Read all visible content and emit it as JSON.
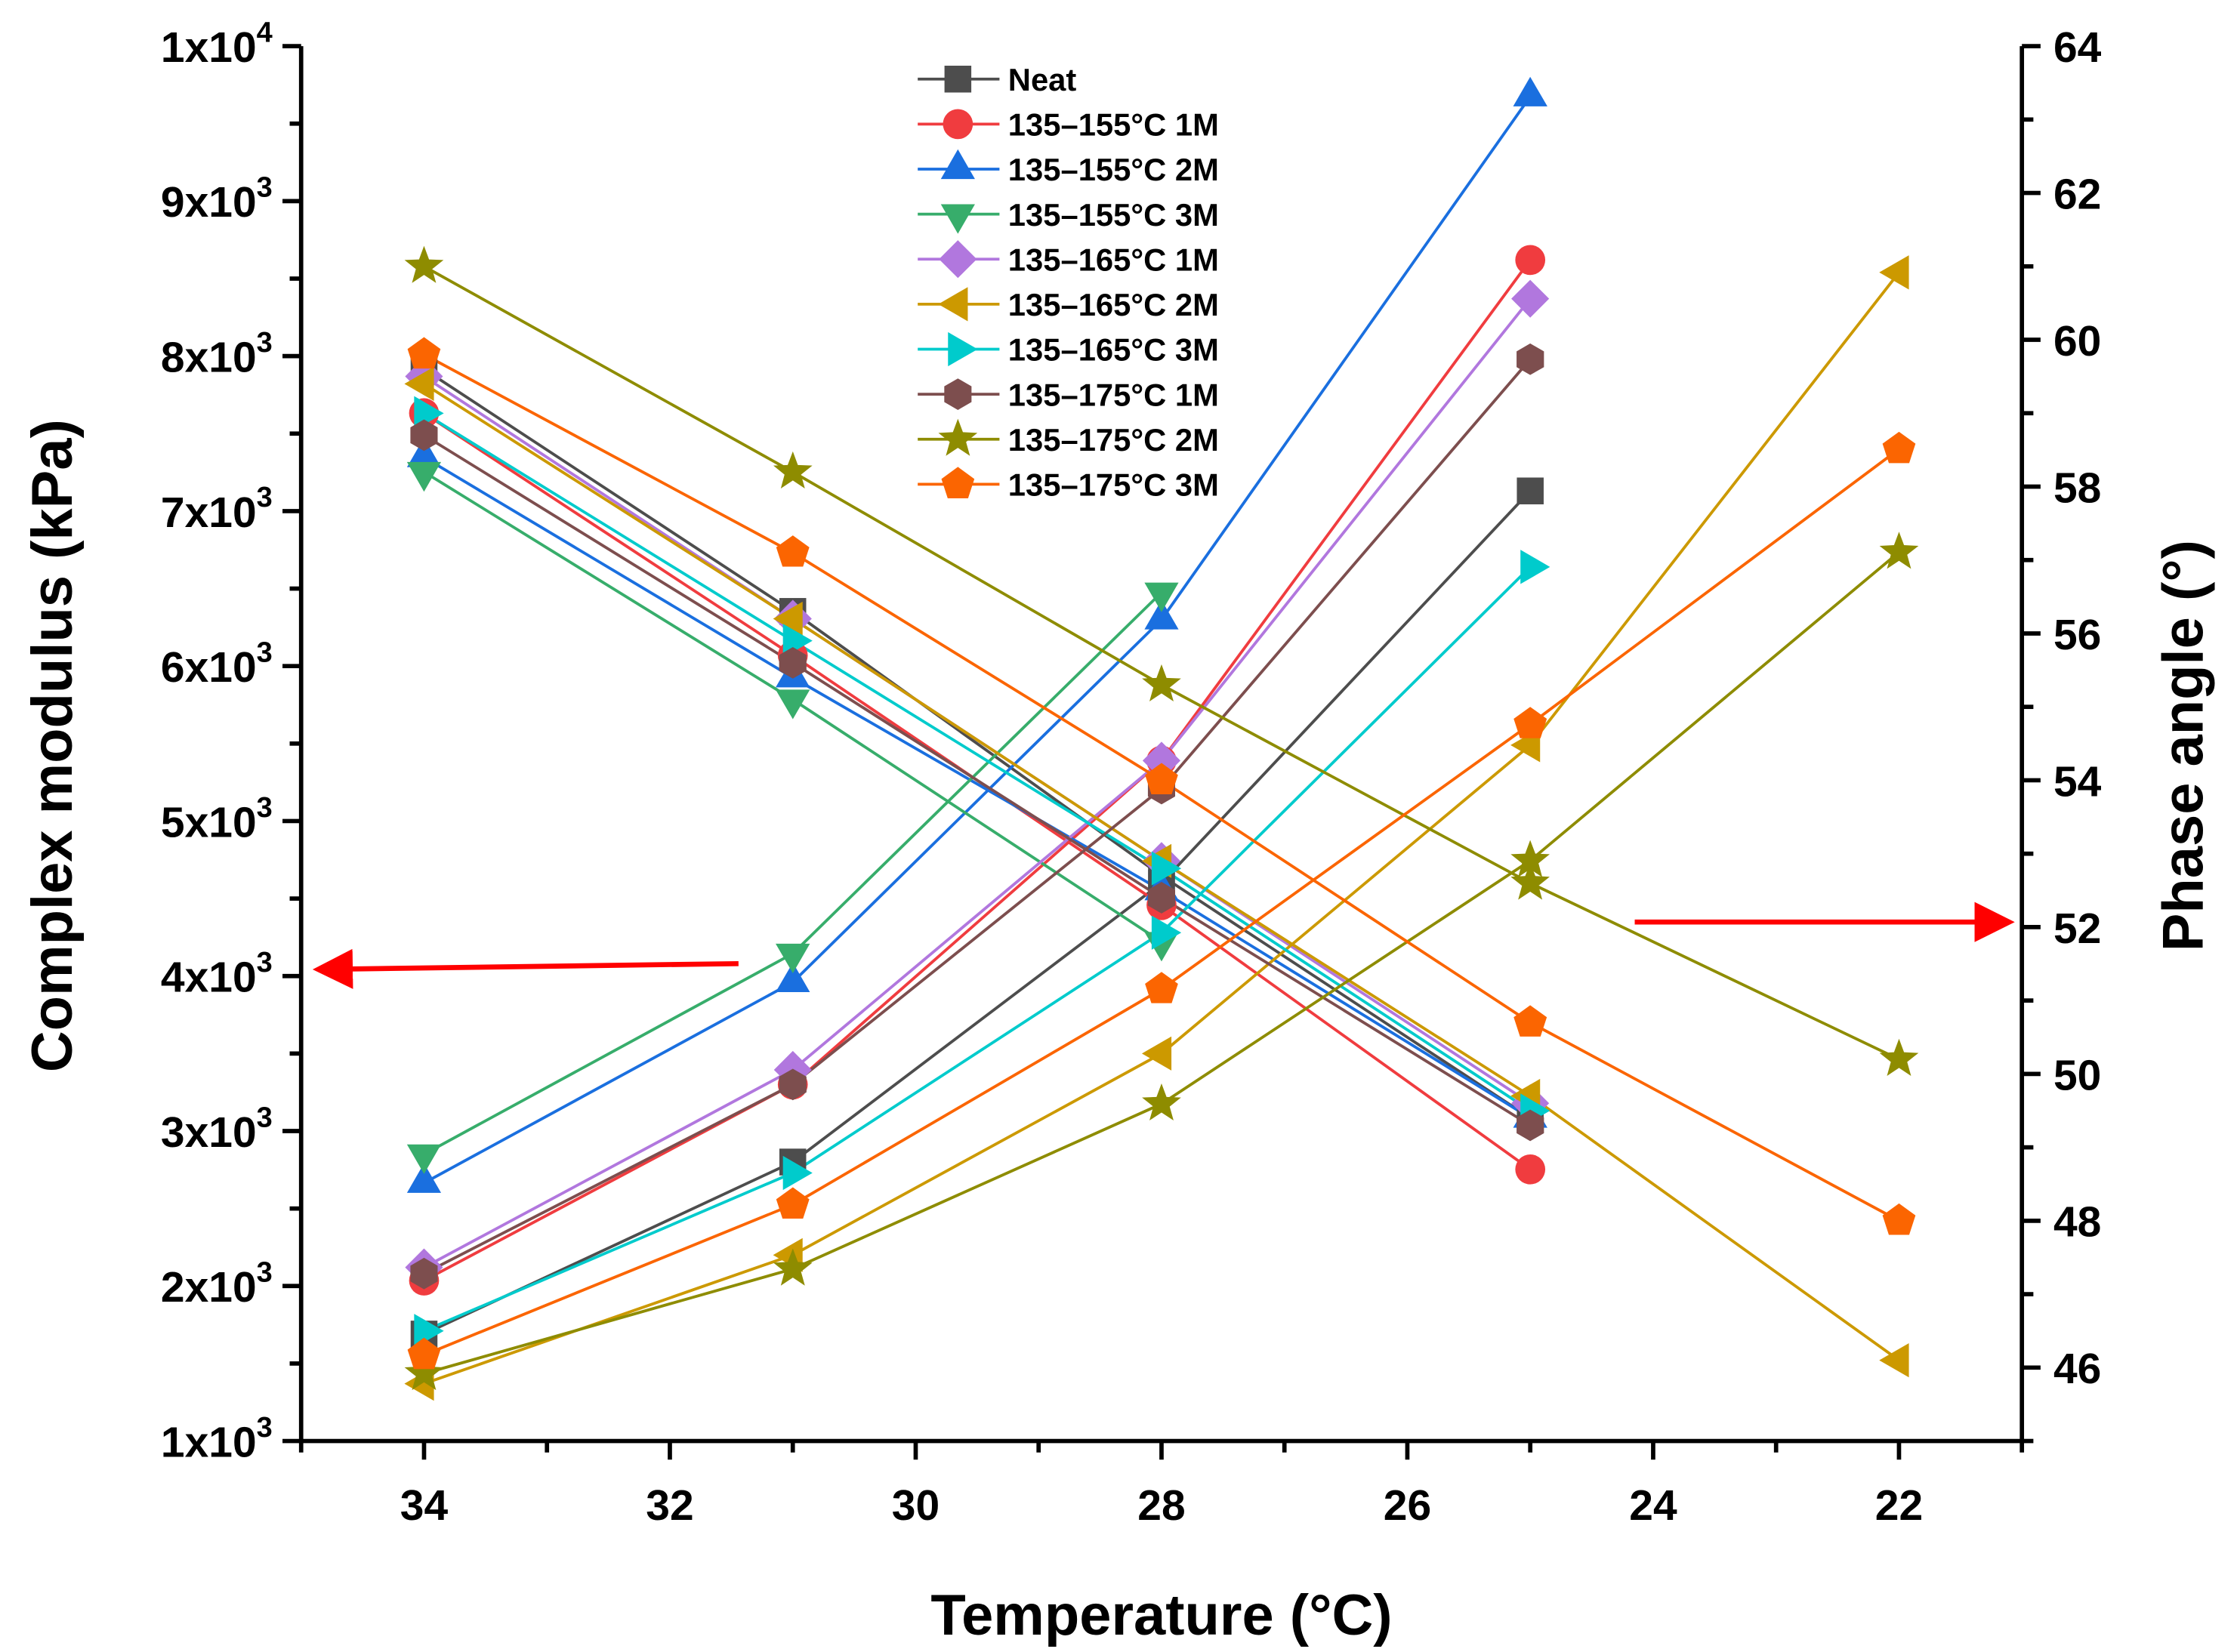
{
  "chart_data": {
    "type": "line",
    "xlabel": "Temperature (°C)",
    "ylabel_left": "Complex modulus (kPa)",
    "ylabel_right": "Phase angle (°)",
    "xlim": [
      35,
      21
    ],
    "ylim_left": [
      1000,
      10000
    ],
    "ylim_right": [
      45,
      64
    ],
    "x_ticks": [
      "34",
      "32",
      "30",
      "28",
      "26",
      "24",
      "22"
    ],
    "y_left_ticks": [
      {
        "base": "1x10",
        "exp": "3"
      },
      {
        "base": "2x10",
        "exp": "3"
      },
      {
        "base": "3x10",
        "exp": "3"
      },
      {
        "base": "4x10",
        "exp": "3"
      },
      {
        "base": "5x10",
        "exp": "3"
      },
      {
        "base": "6x10",
        "exp": "3"
      },
      {
        "base": "7x10",
        "exp": "3"
      },
      {
        "base": "8x10",
        "exp": "3"
      },
      {
        "base": "9x10",
        "exp": "3"
      },
      {
        "base": "1x10",
        "exp": "4"
      }
    ],
    "y_right_ticks": [
      "46",
      "48",
      "50",
      "52",
      "54",
      "56",
      "58",
      "60",
      "62",
      "64"
    ],
    "legend_position": "top-center",
    "x": [
      34,
      31,
      28,
      25,
      22
    ],
    "series": [
      {
        "name": "Neat",
        "marker": "square",
        "color": "#4d4d4d",
        "modulus": [
          1690,
          2800,
          4600,
          7130,
          null
        ],
        "phase": [
          59.6,
          56.3,
          52.7,
          49.4,
          null
        ]
      },
      {
        "name": "135–155°C 1M",
        "marker": "circle",
        "color": "#f03c3f",
        "modulus": [
          2035,
          3300,
          5390,
          8620,
          null
        ],
        "phase": [
          59.0,
          55.7,
          52.3,
          48.7,
          null
        ]
      },
      {
        "name": "135–155°C 2M",
        "marker": "triangle-up",
        "color": "#1a6fdf",
        "modulus": [
          2665,
          3960,
          6300,
          9675,
          null
        ],
        "phase": [
          58.4,
          55.4,
          52.5,
          49.4,
          null
        ]
      },
      {
        "name": "135–155°C 3M",
        "marker": "triangle-down",
        "color": "#37ad6b",
        "modulus": [
          2850,
          4145,
          6475,
          null,
          null
        ],
        "phase": [
          58.2,
          55.1,
          51.8,
          null,
          null
        ]
      },
      {
        "name": "135–165°C 1M",
        "marker": "diamond",
        "color": "#b177de",
        "modulus": [
          2120,
          3395,
          5390,
          8370,
          null
        ],
        "phase": [
          59.5,
          56.2,
          52.9,
          49.6,
          null
        ]
      },
      {
        "name": "135–165°C 2M",
        "marker": "triangle-left",
        "color": "#cc9900",
        "modulus": [
          1370,
          2200,
          3500,
          5490,
          8540
        ],
        "phase": [
          59.4,
          56.2,
          52.9,
          49.7,
          46.1
        ]
      },
      {
        "name": "135–165°C 3M",
        "marker": "triangle-right",
        "color": "#00cbcc",
        "modulus": [
          1710,
          2730,
          4280,
          6640,
          null
        ],
        "phase": [
          59.0,
          55.9,
          52.8,
          49.5,
          null
        ]
      },
      {
        "name": "135–175°C 1M",
        "marker": "hexagon",
        "color": "#7d4e4e",
        "modulus": [
          2080,
          3300,
          5210,
          7980,
          null
        ],
        "phase": [
          58.7,
          55.6,
          52.4,
          49.3,
          null
        ]
      },
      {
        "name": "135–175°C 2M",
        "marker": "star",
        "color": "#8e8c00",
        "modulus": [
          1435,
          2110,
          3175,
          4745,
          6735
        ],
        "phase": [
          61.0,
          58.2,
          55.3,
          52.6,
          50.2
        ]
      },
      {
        "name": "135–175°C 3M",
        "marker": "pentagon",
        "color": "#fb6501",
        "modulus": [
          1555,
          2525,
          3915,
          5625,
          7400
        ],
        "phase": [
          59.8,
          57.1,
          54.0,
          50.7,
          48.0
        ]
      }
    ],
    "annotations": [
      {
        "type": "arrow",
        "direction": "left",
        "color": "#ff0000"
      },
      {
        "type": "arrow",
        "direction": "right",
        "color": "#ff0000"
      }
    ]
  }
}
